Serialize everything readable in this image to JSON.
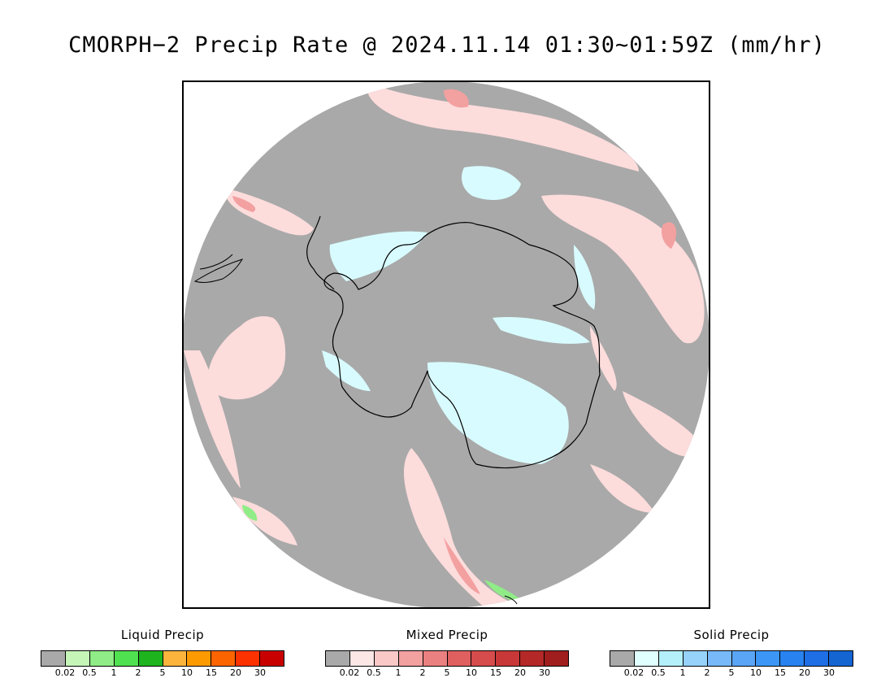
{
  "title": "CMORPH−2 Precip Rate @ 2024.11.14 01:30~01:59Z (mm/hr)",
  "map": {
    "projection": "south-polar-stereographic",
    "background_color": "#a9a9a9",
    "coastline_color": "#000000",
    "icons": [
      "antarctica-coastline",
      "south-america-tip",
      "new-zealand-tip"
    ]
  },
  "legends": [
    {
      "id": "liquid",
      "title": "Liquid Precip",
      "colors": [
        "#a9a9a9",
        "#c6f5b8",
        "#90ec86",
        "#50e150",
        "#1eb41e",
        "#fcb43c",
        "#fc9a00",
        "#fc6400",
        "#fc3200",
        "#c80000"
      ],
      "ticks": [
        "0.02",
        "0.5",
        "1",
        "2",
        "5",
        "10",
        "15",
        "20",
        "30"
      ]
    },
    {
      "id": "mixed",
      "title": "Mixed Precip",
      "colors": [
        "#a9a9a9",
        "#fde6e6",
        "#fbc8c8",
        "#f3a0a0",
        "#eb8080",
        "#e06060",
        "#d64b4b",
        "#c83838",
        "#b42828",
        "#a01e1e"
      ],
      "ticks": [
        "0.02",
        "0.5",
        "1",
        "2",
        "5",
        "10",
        "15",
        "20",
        "30"
      ]
    },
    {
      "id": "solid",
      "title": "Solid Precip",
      "colors": [
        "#a9a9a9",
        "#e0ffff",
        "#b4f0fa",
        "#96d2fa",
        "#78b9fa",
        "#5aa5f5",
        "#3c96f5",
        "#2882f0",
        "#1e6ee6",
        "#1464d2"
      ],
      "ticks": [
        "0.02",
        "0.5",
        "1",
        "2",
        "5",
        "10",
        "15",
        "20",
        "30"
      ]
    }
  ]
}
